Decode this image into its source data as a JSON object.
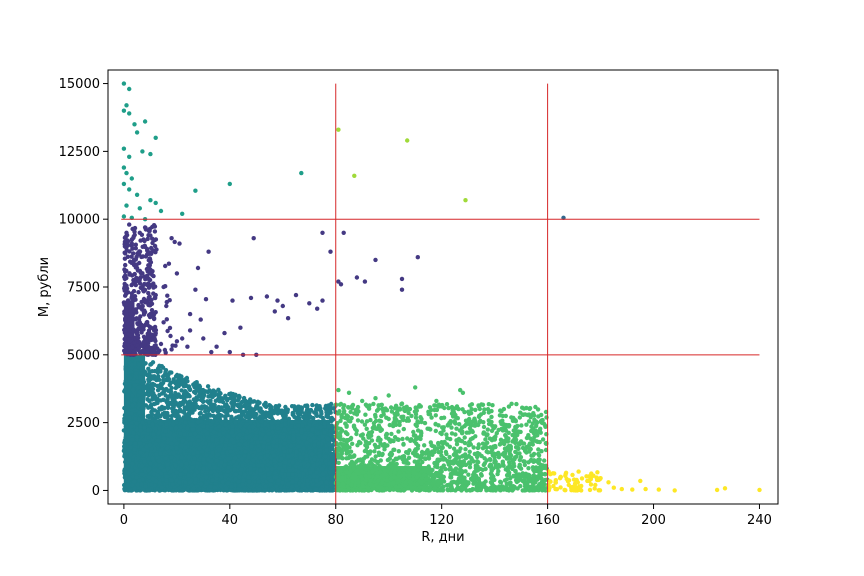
{
  "chart_data": {
    "type": "scatter",
    "xlabel": "R, дни",
    "ylabel": "M, рубли",
    "xlim": [
      -6,
      247
    ],
    "ylim": [
      -500,
      15500
    ],
    "xticks": [
      0,
      40,
      80,
      120,
      160,
      200,
      240
    ],
    "yticks": [
      0,
      2500,
      5000,
      7500,
      10000,
      12500,
      15000
    ],
    "xtick_labels": [
      "0",
      "40",
      "80",
      "120",
      "160",
      "200",
      "240"
    ],
    "ytick_labels": [
      "0",
      "2500",
      "5000",
      "7500",
      "10000",
      "12500",
      "15000"
    ],
    "grid": false,
    "thresholds": {
      "vertical": [
        80,
        160
      ],
      "horizontal": [
        5000,
        10000
      ],
      "line_color": "#d62728"
    },
    "colors": {
      "low_r_mid_m": "#443983",
      "low_r_low_m": "#21808d",
      "low_r_high_m": "#1f9e89",
      "mid_r_low_m": "#4ac16d",
      "mid_r_high_m": "#a0da39",
      "high_r": "#fde725",
      "outlier": "#31688e"
    },
    "clusters": [
      {
        "color_key": "low_r_high_m",
        "points": [
          [
            0,
            15000
          ],
          [
            2,
            14800
          ],
          [
            1,
            14200
          ],
          [
            0,
            14000
          ],
          [
            2,
            13900
          ],
          [
            4,
            13500
          ],
          [
            8,
            13600
          ],
          [
            12,
            13000
          ],
          [
            5,
            13200
          ],
          [
            0,
            12600
          ],
          [
            7,
            12500
          ],
          [
            10,
            12400
          ],
          [
            2,
            12300
          ],
          [
            0,
            11900
          ],
          [
            1,
            11700
          ],
          [
            3,
            11500
          ],
          [
            0,
            11300
          ],
          [
            2,
            11100
          ],
          [
            5,
            10900
          ],
          [
            10,
            10700
          ],
          [
            12,
            10600
          ],
          [
            1,
            10500
          ],
          [
            6,
            10400
          ],
          [
            14,
            10300
          ],
          [
            22,
            10200
          ],
          [
            0,
            10100
          ],
          [
            3,
            10050
          ],
          [
            8,
            10000
          ],
          [
            27,
            11050
          ],
          [
            40,
            11300
          ],
          [
            67,
            11700
          ]
        ]
      },
      {
        "color_key": "low_r_mid_m",
        "points": [
          [
            2,
            9800
          ],
          [
            6,
            9500
          ],
          [
            10,
            9400
          ],
          [
            18,
            9300
          ],
          [
            21,
            9100
          ],
          [
            32,
            8800
          ],
          [
            49,
            9300
          ],
          [
            78,
            8800
          ],
          [
            82,
            7600
          ],
          [
            75,
            9500
          ],
          [
            83,
            9500
          ],
          [
            95,
            8500
          ],
          [
            91,
            7700
          ],
          [
            105,
            7800
          ],
          [
            111,
            8600
          ],
          [
            105,
            7400
          ],
          [
            88,
            7850
          ],
          [
            81,
            7700
          ],
          [
            73,
            6700
          ],
          [
            75,
            7000
          ],
          [
            70,
            6900
          ],
          [
            58,
            7000
          ],
          [
            57,
            6600
          ],
          [
            48,
            7100
          ],
          [
            54,
            7150
          ],
          [
            41,
            7000
          ],
          [
            31,
            7050
          ],
          [
            27,
            7400
          ],
          [
            25,
            6500
          ],
          [
            44,
            6000
          ],
          [
            38,
            5800
          ],
          [
            30,
            5600
          ],
          [
            25,
            5900
          ],
          [
            20,
            5500
          ],
          [
            15,
            6200
          ],
          [
            12,
            5800
          ],
          [
            10,
            6500
          ],
          [
            8,
            7000
          ],
          [
            6,
            7800
          ],
          [
            4,
            8500
          ],
          [
            3,
            9100
          ],
          [
            1,
            9500
          ],
          [
            5,
            8200
          ],
          [
            9,
            6100
          ],
          [
            14,
            5400
          ],
          [
            18,
            5200
          ],
          [
            22,
            5600
          ],
          [
            35,
            5300
          ],
          [
            40,
            5100
          ],
          [
            45,
            5000
          ],
          [
            50,
            5000
          ],
          [
            60,
            6800
          ],
          [
            62,
            6350
          ],
          [
            65,
            7200
          ],
          [
            28,
            8200
          ],
          [
            20,
            8000
          ],
          [
            15,
            7500
          ],
          [
            12,
            7200
          ],
          [
            7,
            6800
          ],
          [
            3,
            6200
          ],
          [
            2,
            5500
          ],
          [
            11,
            5100
          ],
          [
            24,
            5300
          ],
          [
            33,
            5100
          ],
          [
            29,
            6300
          ],
          [
            16,
            6800
          ]
        ]
      },
      {
        "color_key": "outlier",
        "points": [
          [
            166,
            10050
          ]
        ]
      },
      {
        "color_key": "mid_r_high_m",
        "points": [
          [
            81,
            13300
          ],
          [
            107,
            12900
          ],
          [
            87,
            11600
          ],
          [
            129,
            10700
          ]
        ]
      },
      {
        "color_key": "mid_r_low_m",
        "points": [
          [
            81,
            3700
          ],
          [
            85,
            3600
          ],
          [
            90,
            3300
          ],
          [
            95,
            3400
          ],
          [
            100,
            3500
          ],
          [
            105,
            3200
          ],
          [
            108,
            3000
          ],
          [
            110,
            3800
          ],
          [
            115,
            2900
          ],
          [
            118,
            3300
          ],
          [
            120,
            3100
          ],
          [
            127,
            3700
          ],
          [
            128,
            3600
          ],
          [
            130,
            2900
          ],
          [
            125,
            2500
          ],
          [
            132,
            2400
          ],
          [
            136,
            2100
          ],
          [
            140,
            1600
          ],
          [
            145,
            1200
          ],
          [
            150,
            800
          ],
          [
            155,
            700
          ],
          [
            158,
            600
          ],
          [
            112,
            2700
          ],
          [
            98,
            2900
          ],
          [
            92,
            3100
          ],
          [
            88,
            2800
          ]
        ]
      },
      {
        "color_key": "high_r",
        "points": [
          [
            161,
            600
          ],
          [
            163,
            300
          ],
          [
            165,
            500
          ],
          [
            167,
            650
          ],
          [
            168,
            200
          ],
          [
            170,
            400
          ],
          [
            172,
            150
          ],
          [
            175,
            350
          ],
          [
            178,
            200
          ],
          [
            180,
            450
          ],
          [
            183,
            300
          ],
          [
            185,
            100
          ],
          [
            188,
            50
          ],
          [
            192,
            30
          ],
          [
            195,
            350
          ],
          [
            197,
            50
          ],
          [
            202,
            30
          ],
          [
            208,
            0
          ],
          [
            224,
            20
          ],
          [
            227,
            80
          ],
          [
            240,
            20
          ],
          [
            163,
            50
          ],
          [
            170,
            10
          ],
          [
            176,
            20
          ]
        ]
      }
    ],
    "dense_regions": [
      {
        "color_key": "low_r_low_m",
        "count": 4200,
        "x_range": [
          0,
          80
        ],
        "y_max": 5000,
        "decay": 28,
        "top_ridge": [
          [
            0,
            5000
          ],
          [
            10,
            4800
          ],
          [
            20,
            4300
          ],
          [
            30,
            3900
          ],
          [
            40,
            3600
          ],
          [
            50,
            3300
          ],
          [
            60,
            3100
          ],
          [
            70,
            3150
          ],
          [
            80,
            3200
          ]
        ]
      },
      {
        "color_key": "low_r_mid_m",
        "count": 700,
        "x_range": [
          0,
          20
        ],
        "y_min": 5000,
        "y_max": 9800,
        "decay": 4
      },
      {
        "color_key": "mid_r_low_m",
        "count": 1600,
        "x_range": [
          80,
          160
        ],
        "y_max": 3200,
        "decay": 30
      },
      {
        "color_key": "high_r",
        "count": 60,
        "x_range": [
          160,
          180
        ],
        "y_max": 700,
        "decay": 10
      }
    ]
  }
}
